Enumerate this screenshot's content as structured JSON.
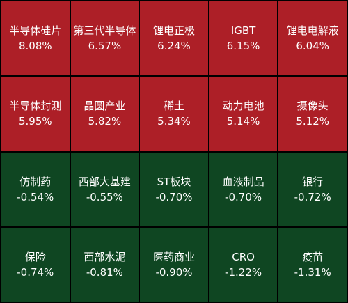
{
  "tiles": [
    {
      "name": "半导体硅片",
      "change": "8.08%"
    },
    {
      "name": "第三代半导体",
      "change": "6.57%"
    },
    {
      "name": "锂电正极",
      "change": "6.24%"
    },
    {
      "name": "IGBT",
      "change": "6.15%"
    },
    {
      "name": "锂电电解液",
      "change": "6.04%"
    },
    {
      "name": "半导体封测",
      "change": "5.95%"
    },
    {
      "name": "晶圆产业",
      "change": "5.82%"
    },
    {
      "name": "稀土",
      "change": "5.34%"
    },
    {
      "name": "动力电池",
      "change": "5.14%"
    },
    {
      "name": "摄像头",
      "change": "5.12%"
    },
    {
      "name": "仿制药",
      "change": "-0.54%"
    },
    {
      "name": "西部大基建",
      "change": "-0.55%"
    },
    {
      "name": "ST板块",
      "change": "-0.70%"
    },
    {
      "name": "血液制品",
      "change": "-0.70%"
    },
    {
      "name": "银行",
      "change": "-0.72%"
    },
    {
      "name": "保险",
      "change": "-0.74%"
    },
    {
      "name": "西部水泥",
      "change": "-0.81%"
    },
    {
      "name": "医药商业",
      "change": "-0.90%"
    },
    {
      "name": "CRO",
      "change": "-1.22%"
    },
    {
      "name": "疫苗",
      "change": "-1.31%"
    }
  ]
}
